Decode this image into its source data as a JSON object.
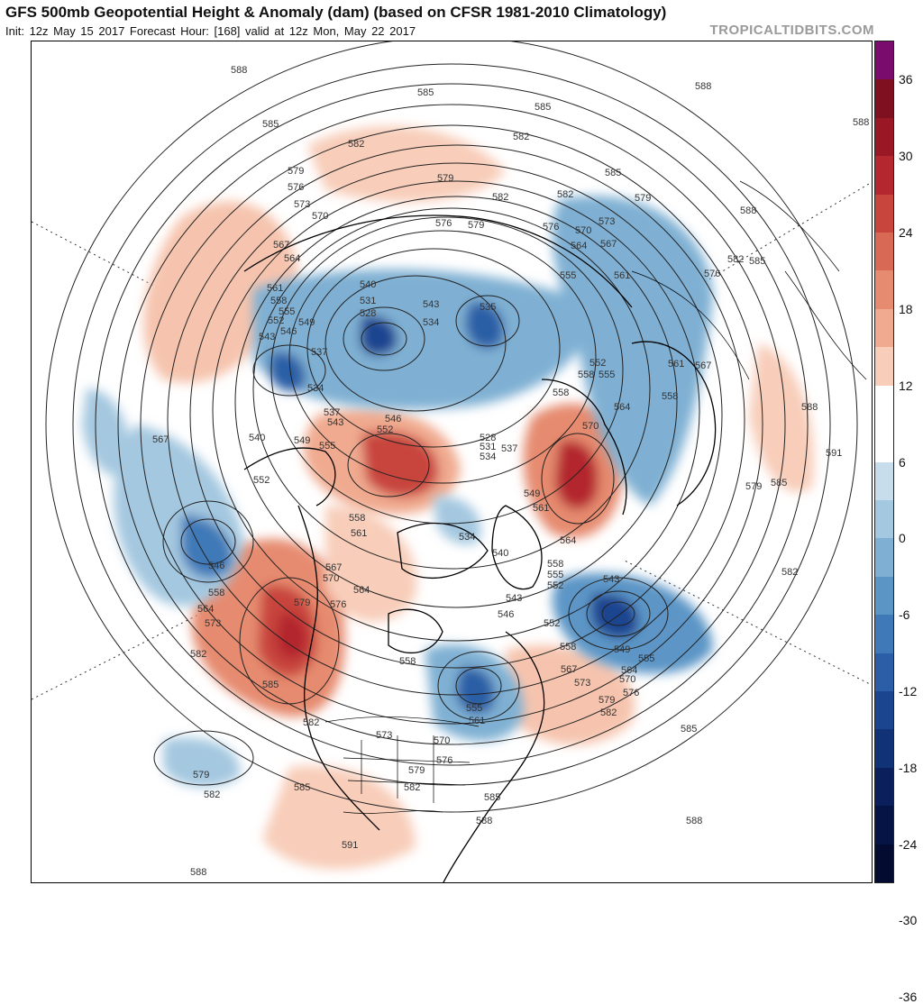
{
  "header": {
    "title": "GFS 500mb Geopotential Height & Anomaly (dam) (based on CFSR 1981-2010 Climatology)",
    "subtitle": "Init: 12z May 15 2017   Forecast Hour: [168]   valid at 12z Mon, May 22 2017",
    "brand": "TROPICALTIDBITS.COM"
  },
  "colorbar": {
    "labels": [
      "36",
      "30",
      "24",
      "18",
      "12",
      "6",
      "0",
      "-6",
      "-12",
      "-18",
      "-24",
      "-30",
      "-36"
    ],
    "colors": [
      "#7a0c6e",
      "#7e1020",
      "#9a1825",
      "#b4272f",
      "#c8453d",
      "#d86a55",
      "#e68b70",
      "#f0aa8f",
      "#f8cdb9",
      "#ffffff",
      "#ffffff",
      "#c7ddec",
      "#a4c8e0",
      "#7fb0d3",
      "#5b95c6",
      "#3f79b8",
      "#2b5ea6",
      "#1c4590",
      "#123278",
      "#0b1f5c",
      "#061445",
      "#030b30"
    ]
  },
  "contour_labels": [
    "588",
    "585",
    "582",
    "579",
    "576",
    "573",
    "570",
    "567",
    "564",
    "561",
    "558",
    "555",
    "552",
    "549",
    "546",
    "543",
    "540",
    "537",
    "534",
    "531",
    "528",
    "591"
  ],
  "features": {
    "positive_anomalies": [
      "Western North America ridge",
      "Central Siberia ridge",
      "Northern Europe ridge",
      "North Atlantic ridge",
      "Eastern Pacific ridge"
    ],
    "negative_anomalies": [
      "Great Lakes trough",
      "North Pacific low",
      "Arctic low",
      "Northern Russia low",
      "North Atlantic low",
      "Eastern Siberia trough"
    ]
  }
}
